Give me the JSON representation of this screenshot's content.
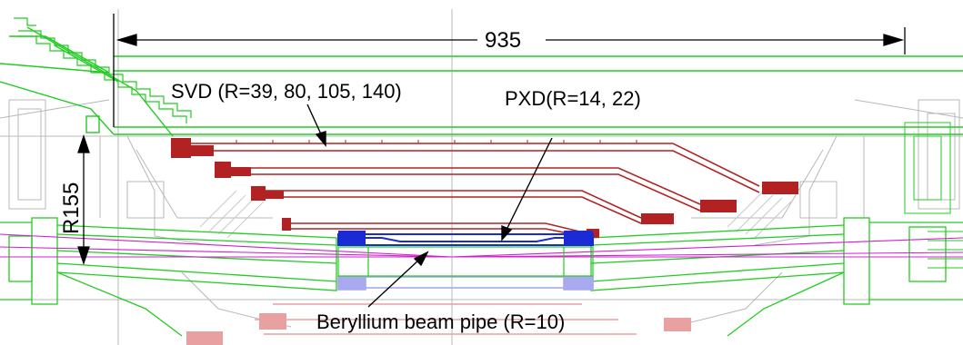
{
  "dimensions": {
    "width_label": "935",
    "radius_label": "R155"
  },
  "labels": {
    "svd": "SVD (R=39, 80, 105, 140)",
    "pxd": "PXD(R=14, 22)",
    "beam_pipe": "Beryllium beam pipe (R=10)"
  },
  "colors": {
    "svd": "#b22222",
    "svd_light": "#e8a0a0",
    "pxd": "#1a2bd6",
    "pxd_light": "#a9a9f0",
    "structure": "#22cc22",
    "beamline": "#d020d0",
    "background_lines": "#b0b0b0",
    "annotation": "#000000"
  }
}
